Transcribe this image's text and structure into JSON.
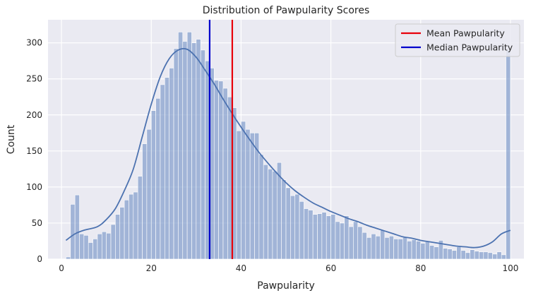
{
  "chart_data": {
    "type": "histogram",
    "title": "Distribution of Pawpularity Scores",
    "xlabel": "Pawpularity",
    "ylabel": "Count",
    "xlim": [
      -3,
      103
    ],
    "ylim": [
      0,
      332
    ],
    "xticks": [
      0,
      20,
      40,
      60,
      80,
      100
    ],
    "yticks": [
      0,
      50,
      100,
      150,
      200,
      250,
      300
    ],
    "grid": true,
    "background": "#eaeaf2",
    "bar_color": "#7a96c8",
    "kde_color": "#4c72b0",
    "bins": {
      "start": 1,
      "width": 1,
      "counts": [
        3,
        76,
        89,
        35,
        33,
        23,
        28,
        35,
        38,
        36,
        48,
        62,
        72,
        82,
        90,
        93,
        115,
        160,
        180,
        206,
        223,
        242,
        252,
        265,
        292,
        315,
        302,
        315,
        300,
        305,
        290,
        275,
        265,
        248,
        247,
        237,
        225,
        210,
        178,
        191,
        180,
        175,
        175,
        145,
        131,
        125,
        122,
        134,
        110,
        99,
        88,
        90,
        80,
        70,
        68,
        62,
        63,
        65,
        60,
        62,
        52,
        50,
        60,
        45,
        52,
        45,
        37,
        30,
        35,
        32,
        40,
        30,
        32,
        28,
        28,
        30,
        25,
        27,
        25,
        22,
        24,
        19,
        17,
        26,
        15,
        14,
        12,
        17,
        12,
        9,
        13,
        11,
        10,
        10,
        9,
        7,
        10,
        6,
        290
      ]
    },
    "kde": {
      "x": [
        1,
        3,
        5,
        8,
        10,
        12,
        14,
        16,
        18,
        20,
        22,
        24,
        26,
        28,
        30,
        32,
        34,
        36,
        38,
        40,
        42,
        44,
        46,
        48,
        50,
        52,
        54,
        56,
        58,
        60,
        62,
        64,
        66,
        68,
        70,
        72,
        74,
        76,
        78,
        80,
        82,
        84,
        86,
        88,
        90,
        92,
        94,
        96,
        98,
        100
      ],
      "y": [
        26,
        35,
        40,
        45,
        55,
        70,
        95,
        125,
        170,
        215,
        253,
        278,
        290,
        291,
        280,
        262,
        243,
        222,
        202,
        183,
        165,
        148,
        133,
        119,
        106,
        95,
        86,
        78,
        72,
        66,
        61,
        56,
        52,
        47,
        43,
        39,
        35,
        31,
        29,
        26,
        24,
        22,
        20,
        18,
        17,
        16,
        18,
        24,
        35,
        40
      ]
    },
    "lines": [
      {
        "name": "Mean Pawpularity",
        "x": 38.04,
        "color": "#e8000b"
      },
      {
        "name": "Median Pawpularity",
        "x": 33,
        "color": "#0000cc"
      }
    ],
    "legend": {
      "placement": "top-right",
      "entries": [
        {
          "label": "Mean Pawpularity",
          "color": "#e8000b"
        },
        {
          "label": "Median Pawpularity",
          "color": "#0000cc"
        }
      ]
    }
  }
}
